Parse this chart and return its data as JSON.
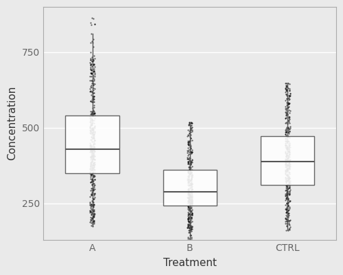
{
  "groups": [
    "A",
    "B",
    "CTRL"
  ],
  "xlabel": "Treatment",
  "ylabel": "Concentration",
  "ylim": [
    130,
    900
  ],
  "yticks": [
    250,
    500,
    750
  ],
  "background_color": "#EAEAEA",
  "panel_background": "#EAEAEA",
  "box_facecolor": "#FFFFFF",
  "box_edgecolor": "#555555",
  "scatter_color": "#000000",
  "scatter_alpha": 0.6,
  "scatter_size": 2.5,
  "scatter_jitter": 0.025,
  "box_width": 0.55,
  "group_A": {
    "q1": 360,
    "median": 430,
    "q3": 530,
    "whisker_low": 195,
    "whisker_high": 730,
    "n": 500,
    "data_low": 175,
    "data_high": 865
  },
  "group_B": {
    "q1": 248,
    "median": 288,
    "q3": 358,
    "whisker_low": 158,
    "whisker_high": 508,
    "n": 400,
    "data_low": 130,
    "data_high": 520
  },
  "group_CTRL": {
    "q1": 318,
    "median": 388,
    "q3": 458,
    "whisker_low": 188,
    "whisker_high": 628,
    "n": 450,
    "data_low": 160,
    "data_high": 648
  },
  "label_fontsize": 11,
  "tick_fontsize": 10
}
